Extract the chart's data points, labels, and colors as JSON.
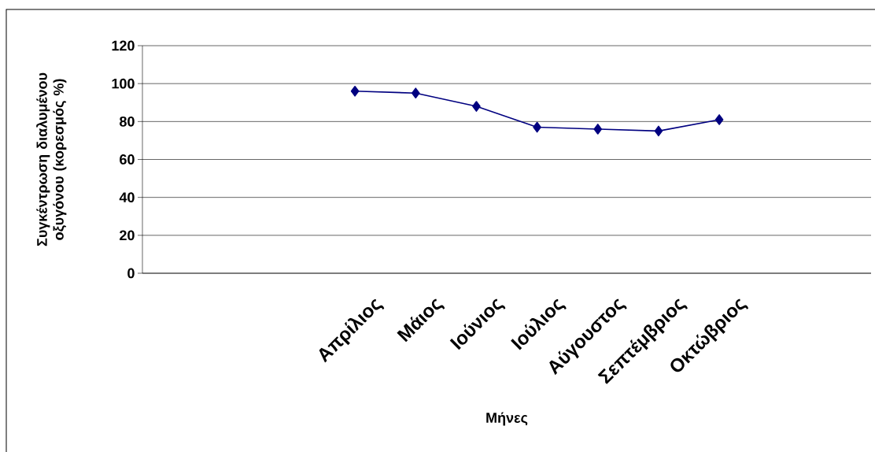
{
  "chart_data": {
    "type": "line",
    "ylabel": "Συγκέντρωση διαλυμένου οξυγόνου (κορεσμός %)",
    "xlabel": "Μήνες",
    "categories": [
      null,
      null,
      null,
      "Απρίλιος",
      "Μάιος",
      "Ιούνιος",
      "Ιούλιος",
      "Αύγουστος",
      "Σεπτέμβριος",
      "Οκτώβριος",
      null,
      null
    ],
    "values": [
      null,
      null,
      null,
      96,
      95,
      88,
      77,
      76,
      75,
      81,
      null,
      null
    ],
    "color": "#000080",
    "marker": "diamond",
    "line_style": "solid",
    "ylim": [
      0,
      120
    ],
    "yticks": [
      0,
      20,
      40,
      60,
      80,
      100,
      120
    ],
    "grid": "y"
  }
}
